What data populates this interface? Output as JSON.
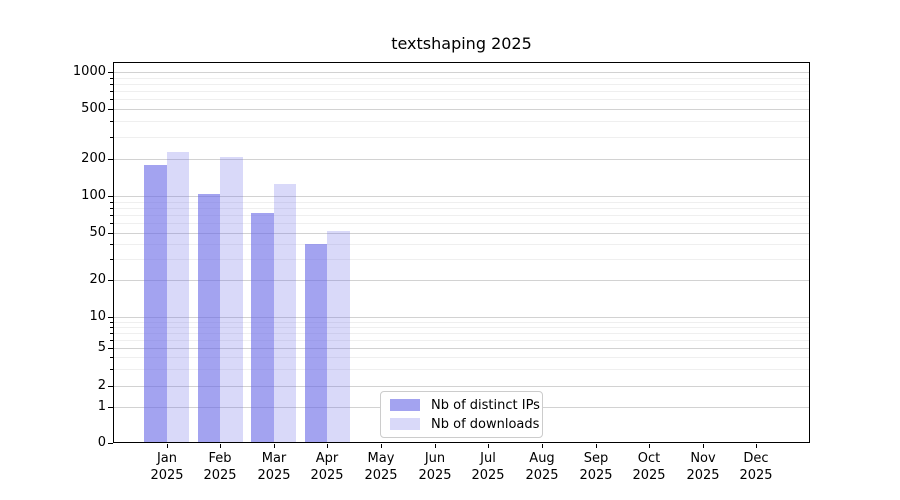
{
  "chart_data": {
    "type": "bar",
    "title": "textshaping 2025",
    "xlabel": "",
    "ylabel": "",
    "yscale": "symlog",
    "ylim": [
      0,
      1200
    ],
    "grid": true,
    "yticks": [
      0,
      1,
      2,
      5,
      10,
      20,
      50,
      100,
      200,
      500,
      1000
    ],
    "minor_grid_values": [
      3,
      4,
      6,
      7,
      8,
      9,
      30,
      40,
      60,
      70,
      80,
      90,
      300,
      400,
      600,
      700,
      800,
      900
    ],
    "categories": [
      "Jan 2025",
      "Feb 2025",
      "Mar 2025",
      "Apr 2025",
      "May 2025",
      "Jun 2025",
      "Jul 2025",
      "Aug 2025",
      "Sep 2025",
      "Oct 2025",
      "Nov 2025",
      "Dec 2025"
    ],
    "series": [
      {
        "name": "Nb of distinct IPs",
        "color": "rgba(102,102,230,0.6)",
        "values": [
          180,
          103,
          73,
          40,
          null,
          null,
          null,
          null,
          null,
          null,
          null,
          null
        ]
      },
      {
        "name": "Nb of downloads",
        "color": "rgba(102,102,230,0.25)",
        "values": [
          227,
          207,
          125,
          52,
          null,
          null,
          null,
          null,
          null,
          null,
          null,
          null
        ]
      }
    ],
    "legend_position": "lower center",
    "colors": {
      "major_grid": "#d2d2d2",
      "minor_grid": "#efefef",
      "spine": "#000000",
      "text": "#000000",
      "background": "#ffffff"
    }
  }
}
